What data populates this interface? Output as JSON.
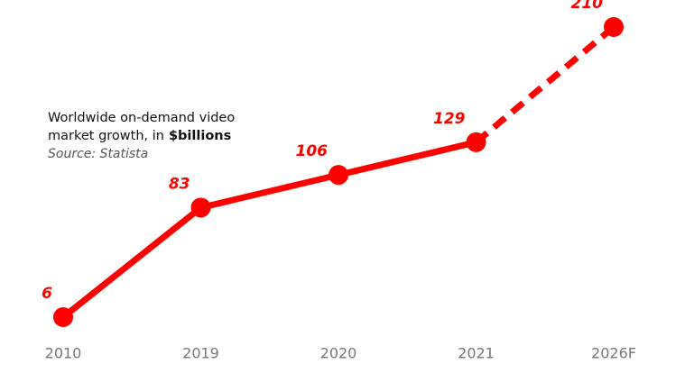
{
  "chart_data": {
    "type": "line",
    "title": [
      "Worldwide on-demand video",
      "market growth, in"
    ],
    "title_bold": "$billions",
    "subtitle": "Source: Statista",
    "categories": [
      "2010",
      "2019",
      "2020",
      "2021",
      "2026F"
    ],
    "values": [
      6,
      83,
      106,
      129,
      210
    ],
    "color": "#ff0000",
    "segment_styles": [
      "solid",
      "solid",
      "solid",
      "dashed"
    ]
  }
}
